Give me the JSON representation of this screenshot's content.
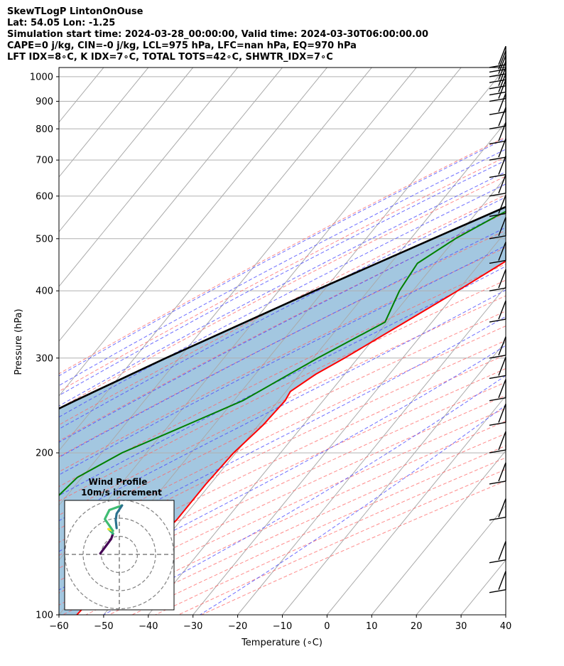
{
  "header": {
    "title": "SkewTLogP LintonOnOuse",
    "location": "Lat: 54.05   Lon: -1.25",
    "times": "Simulation start time: 2024-03-28_00:00:00, Valid time: 2024-03-30T06:00:00.00",
    "params1": "CAPE=0 j/kg, CIN=-0 j/kg, LCL=975 hPa, LFC=nan hPa, EQ=970 hPa",
    "params2": "LFT IDX=8∘C, K IDX=7∘C, TOTAL TOTS=42∘C, SHWTR_IDX=7∘C"
  },
  "chart_data": {
    "type": "line",
    "title": "SkewTLogP LintonOnOuse",
    "xlabel": "Temperature (∘C)",
    "ylabel": "Pressure (hPa)",
    "xlim": [
      -60,
      40
    ],
    "ylim": [
      1040,
      100
    ],
    "y_scale": "log",
    "x_ticks": [
      -60,
      -50,
      -40,
      -30,
      -20,
      -10,
      0,
      10,
      20,
      30,
      40
    ],
    "y_ticks": [
      1000,
      900,
      800,
      700,
      600,
      500,
      400,
      300,
      200,
      100
    ],
    "grid": true,
    "colors": {
      "temperature": "#ff0000",
      "dewpoint": "#008000",
      "parcel": "#000000",
      "fill": "#a3c7e0",
      "dry_adiabats": "#ff6666",
      "moist_adiabats": "#4a4aff",
      "mixing_ratio": "#8a2be2",
      "isotherms": "#aaaaaa"
    },
    "series": [
      {
        "key": "temperature",
        "pressure": [
          975,
          950,
          925,
          900,
          850,
          800,
          750,
          700,
          650,
          600,
          550,
          500,
          450,
          400,
          350,
          300,
          280,
          260,
          250,
          225,
          200,
          175,
          150,
          125,
          110,
          100
        ],
        "values": [
          5.0,
          9.5,
          9.0,
          7.0,
          3.0,
          -1.0,
          -4.5,
          -7.5,
          -10.5,
          -13.5,
          -17.0,
          -21.0,
          -25.0,
          -30.0,
          -36.0,
          -43.0,
          -46.5,
          -49.0,
          -48.5,
          -49.0,
          -50.5,
          -51.0,
          -51.0,
          -54.0,
          -55.5,
          -56.0
        ]
      },
      {
        "key": "dewpoint",
        "pressure": [
          975,
          930,
          900,
          850,
          800,
          750,
          700,
          650,
          600,
          550,
          500,
          450,
          400,
          350,
          300,
          250,
          220,
          200,
          180,
          150,
          125,
          100
        ],
        "values": [
          4.5,
          -6.0,
          -12.0,
          -16.0,
          -17.0,
          -17.5,
          -19.5,
          -24.5,
          -29.5,
          -35.0,
          -40.0,
          -44.0,
          -43.0,
          -40.5,
          -49.0,
          -58.0,
          -68.0,
          -75.5,
          -81.0,
          -83.0,
          -83.5,
          -85.0
        ]
      },
      {
        "key": "parcel",
        "pressure": [
          985,
          975,
          900,
          800,
          700,
          600,
          500,
          400,
          300,
          250,
          200,
          150,
          125,
          100
        ],
        "values": [
          5.0,
          4.5,
          -1.0,
          -9.5,
          -19.5,
          -31.0,
          -45.0,
          -62.0,
          -83.0,
          -95.5,
          -110.0,
          -128.0,
          -139.0,
          -153.0
        ]
      }
    ],
    "wind_barbs_pressure": [
      1040,
      1020,
      1000,
      975,
      950,
      925,
      900,
      850,
      800,
      750,
      700,
      650,
      600,
      550,
      500,
      450,
      400,
      350,
      300,
      275,
      250,
      225,
      200,
      175,
      150,
      125,
      110
    ],
    "hodograph": {
      "title": "Wind Profile",
      "subtitle": "10m/s increment",
      "rings_ms": [
        10,
        20,
        30
      ],
      "segments": [
        {
          "color": "#440154",
          "u": [
            -10.5,
            -7.5,
            -4.5,
            -3.5
          ],
          "v": [
            0.5,
            4.5,
            8.5,
            11.5
          ]
        },
        {
          "color": "#35b779",
          "u": [
            -3.5,
            -6.0
          ],
          "v": [
            11.5,
            14.0
          ]
        },
        {
          "color": "#fde725",
          "u": [
            -6.0,
            -3.5
          ],
          "v": [
            14.0,
            13.0
          ]
        },
        {
          "color": "#3fbc73",
          "u": [
            -3.5,
            -8.0,
            -5.5,
            1.5
          ],
          "v": [
            13.0,
            19.5,
            24.5,
            27.0
          ]
        },
        {
          "color": "#2c728e",
          "u": [
            -1.5,
            -2.0,
            -1.5,
            1.5
          ],
          "v": [
            14.5,
            19.0,
            22.5,
            27.0
          ]
        }
      ]
    }
  }
}
